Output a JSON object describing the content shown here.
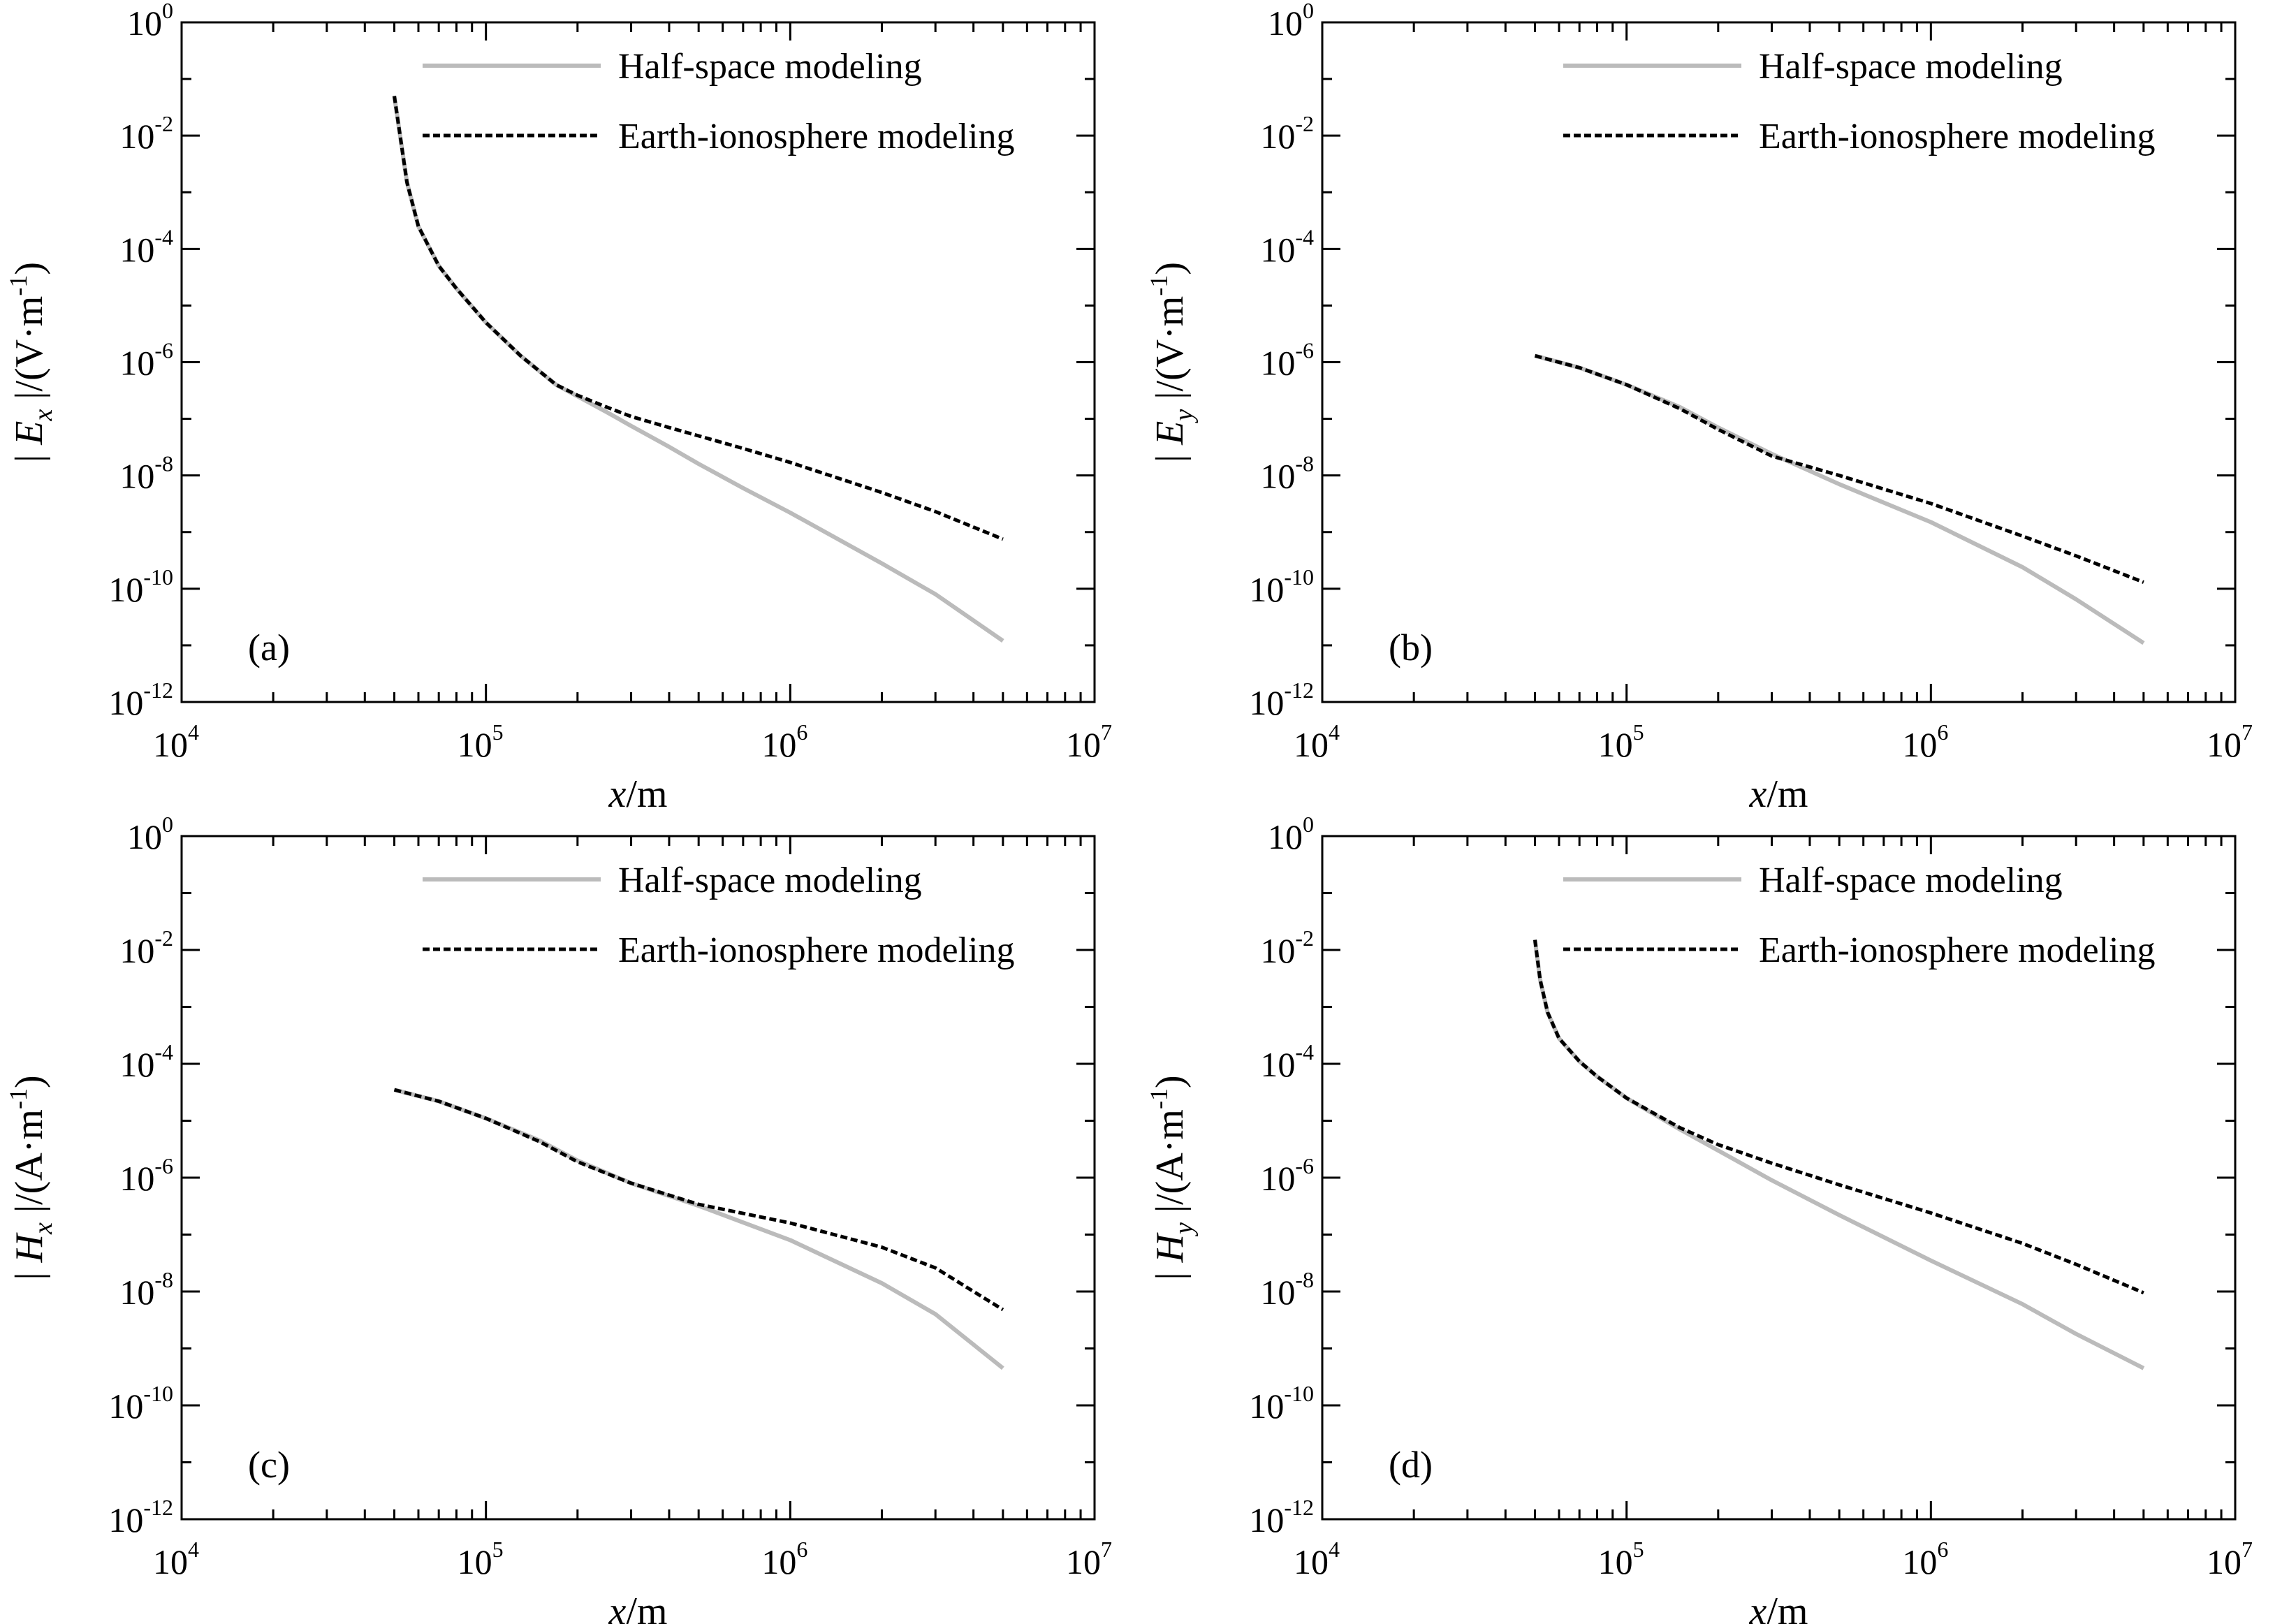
{
  "chart_data": [
    {
      "type": "line",
      "panel_label": "(a)",
      "xlabel": "x/m",
      "ylabel": "|Ex|/(V·m-1)",
      "ylabel_quantity": "E",
      "ylabel_sub": "x",
      "ylabel_unit": "/(V·m",
      "ylabel_unit_sup": "-1",
      "ylabel_unit_close": ")",
      "xscale": "log",
      "yscale": "log",
      "xlim": [
        10000,
        10000000
      ],
      "ylim": [
        1e-12,
        1
      ],
      "xticks": [
        10000,
        100000,
        1000000,
        10000000
      ],
      "yticks": [
        1e-12,
        1e-10,
        1e-08,
        1e-06,
        0.0001,
        0.01,
        1
      ],
      "legend_position": "top-right",
      "series": [
        {
          "name": "Half-space modeling",
          "color": "#bbbbbb",
          "style": "solid",
          "x": [
            50000,
            55000,
            60000,
            70000,
            80000,
            100000,
            130000,
            170000,
            200000,
            250000,
            300000,
            400000,
            500000,
            700000,
            1000000,
            2000000,
            3000000,
            5000000
          ],
          "y": [
            0.05,
            0.0015,
            0.00025,
            5e-05,
            2e-05,
            5e-06,
            1.3e-06,
            4e-07,
            2.5e-07,
            1.3e-07,
            7.5e-08,
            3.2e-08,
            1.6e-08,
            6e-09,
            2.2e-09,
            2.8e-10,
            8e-11,
            1.2e-11
          ]
        },
        {
          "name": "Earth-ionosphere modeling",
          "color": "#000000",
          "style": "dashed",
          "x": [
            50000,
            55000,
            60000,
            70000,
            80000,
            100000,
            130000,
            170000,
            200000,
            250000,
            300000,
            400000,
            500000,
            700000,
            1000000,
            2000000,
            3000000,
            5000000
          ],
          "y": [
            0.05,
            0.0015,
            0.00025,
            5e-05,
            2e-05,
            5e-06,
            1.3e-06,
            4e-07,
            2.6e-07,
            1.6e-07,
            1.1e-07,
            7e-08,
            5e-08,
            3e-08,
            1.7e-08,
            5e-09,
            2.3e-09,
            7.5e-10
          ]
        }
      ]
    },
    {
      "type": "line",
      "panel_label": "(b)",
      "xlabel": "x/m",
      "ylabel": "|Ey|/(V·m-1)",
      "ylabel_quantity": "E",
      "ylabel_sub": "y",
      "ylabel_unit": "/(V·m",
      "ylabel_unit_sup": "-1",
      "ylabel_unit_close": ")",
      "xscale": "log",
      "yscale": "log",
      "xlim": [
        10000,
        10000000
      ],
      "ylim": [
        1e-12,
        1
      ],
      "xticks": [
        10000,
        100000,
        1000000,
        10000000
      ],
      "yticks": [
        1e-12,
        1e-10,
        1e-08,
        1e-06,
        0.0001,
        0.01,
        1
      ],
      "legend_position": "top-right",
      "series": [
        {
          "name": "Half-space modeling",
          "color": "#bbbbbb",
          "style": "solid",
          "x": [
            50000,
            70000,
            100000,
            150000,
            200000,
            300000,
            500000,
            1000000,
            2000000,
            3000000,
            5000000
          ],
          "y": [
            1.3e-06,
            8e-07,
            4e-07,
            1.6e-07,
            7e-08,
            2.4e-08,
            7e-09,
            1.5e-09,
            2.4e-10,
            6.5e-11,
            1.1e-11
          ]
        },
        {
          "name": "Earth-ionosphere modeling",
          "color": "#000000",
          "style": "dashed",
          "x": [
            50000,
            70000,
            100000,
            150000,
            200000,
            300000,
            500000,
            1000000,
            2000000,
            3000000,
            5000000
          ],
          "y": [
            1.3e-06,
            8e-07,
            4e-07,
            1.5e-07,
            6.5e-08,
            2.2e-08,
            1e-08,
            3.2e-09,
            8.5e-10,
            3.8e-10,
            1.3e-10
          ]
        }
      ]
    },
    {
      "type": "line",
      "panel_label": "(c)",
      "xlabel": "x/m",
      "ylabel": "|Hx|/(A·m-1)",
      "ylabel_quantity": "H",
      "ylabel_sub": "x",
      "ylabel_unit": "/(A·m",
      "ylabel_unit_sup": "-1",
      "ylabel_unit_close": ")",
      "xscale": "log",
      "yscale": "log",
      "xlim": [
        10000,
        10000000
      ],
      "ylim": [
        1e-12,
        1
      ],
      "xticks": [
        10000,
        100000,
        1000000,
        10000000
      ],
      "yticks": [
        1e-12,
        1e-10,
        1e-08,
        1e-06,
        0.0001,
        0.01,
        1
      ],
      "legend_position": "top-right",
      "series": [
        {
          "name": "Half-space modeling",
          "color": "#bbbbbb",
          "style": "solid",
          "x": [
            50000,
            70000,
            100000,
            150000,
            200000,
            300000,
            500000,
            1000000,
            2000000,
            3000000,
            5000000
          ],
          "y": [
            3.5e-05,
            2.2e-05,
            1.1e-05,
            4.5e-06,
            2e-06,
            8e-07,
            3.2e-07,
            8e-08,
            1.4e-08,
            4e-09,
            4.5e-10
          ]
        },
        {
          "name": "Earth-ionosphere modeling",
          "color": "#000000",
          "style": "dashed",
          "x": [
            50000,
            70000,
            100000,
            150000,
            200000,
            300000,
            500000,
            1000000,
            2000000,
            3000000,
            5000000
          ],
          "y": [
            3.5e-05,
            2.2e-05,
            1.1e-05,
            4.3e-06,
            1.9e-06,
            8e-07,
            3.4e-07,
            1.6e-07,
            6e-08,
            2.6e-08,
            4.8e-09
          ]
        }
      ]
    },
    {
      "type": "line",
      "panel_label": "(d)",
      "xlabel": "x/m",
      "ylabel": "|Hy|/(A·m-1)",
      "ylabel_quantity": "H",
      "ylabel_sub": "y",
      "ylabel_unit": "/(A·m",
      "ylabel_unit_sup": "-1",
      "ylabel_unit_close": ")",
      "xscale": "log",
      "yscale": "log",
      "xlim": [
        10000,
        10000000
      ],
      "ylim": [
        1e-12,
        1
      ],
      "xticks": [
        10000,
        100000,
        1000000,
        10000000
      ],
      "yticks": [
        1e-12,
        1e-10,
        1e-08,
        1e-06,
        0.0001,
        0.01,
        1
      ],
      "legend_position": "top-right",
      "series": [
        {
          "name": "Half-space modeling",
          "color": "#bbbbbb",
          "style": "solid",
          "x": [
            50000,
            52000,
            55000,
            60000,
            70000,
            80000,
            100000,
            150000,
            200000,
            300000,
            500000,
            1000000,
            2000000,
            3000000,
            5000000
          ],
          "y": [
            0.015,
            0.003,
            0.0008,
            0.00028,
            0.00011,
            6e-05,
            2.5e-05,
            7e-06,
            3e-06,
            9e-07,
            2.2e-07,
            3.5e-08,
            6e-09,
            1.8e-09,
            4.5e-10
          ]
        },
        {
          "name": "Earth-ionosphere modeling",
          "color": "#000000",
          "style": "dashed",
          "x": [
            50000,
            52000,
            55000,
            60000,
            70000,
            80000,
            100000,
            150000,
            200000,
            300000,
            500000,
            1000000,
            2000000,
            3000000,
            5000000
          ],
          "y": [
            0.015,
            0.003,
            0.0008,
            0.00028,
            0.00011,
            6e-05,
            2.5e-05,
            7.5e-06,
            3.8e-06,
            1.8e-06,
            7.5e-07,
            2.4e-07,
            7e-08,
            3e-08,
            9.5e-09
          ]
        }
      ]
    }
  ]
}
